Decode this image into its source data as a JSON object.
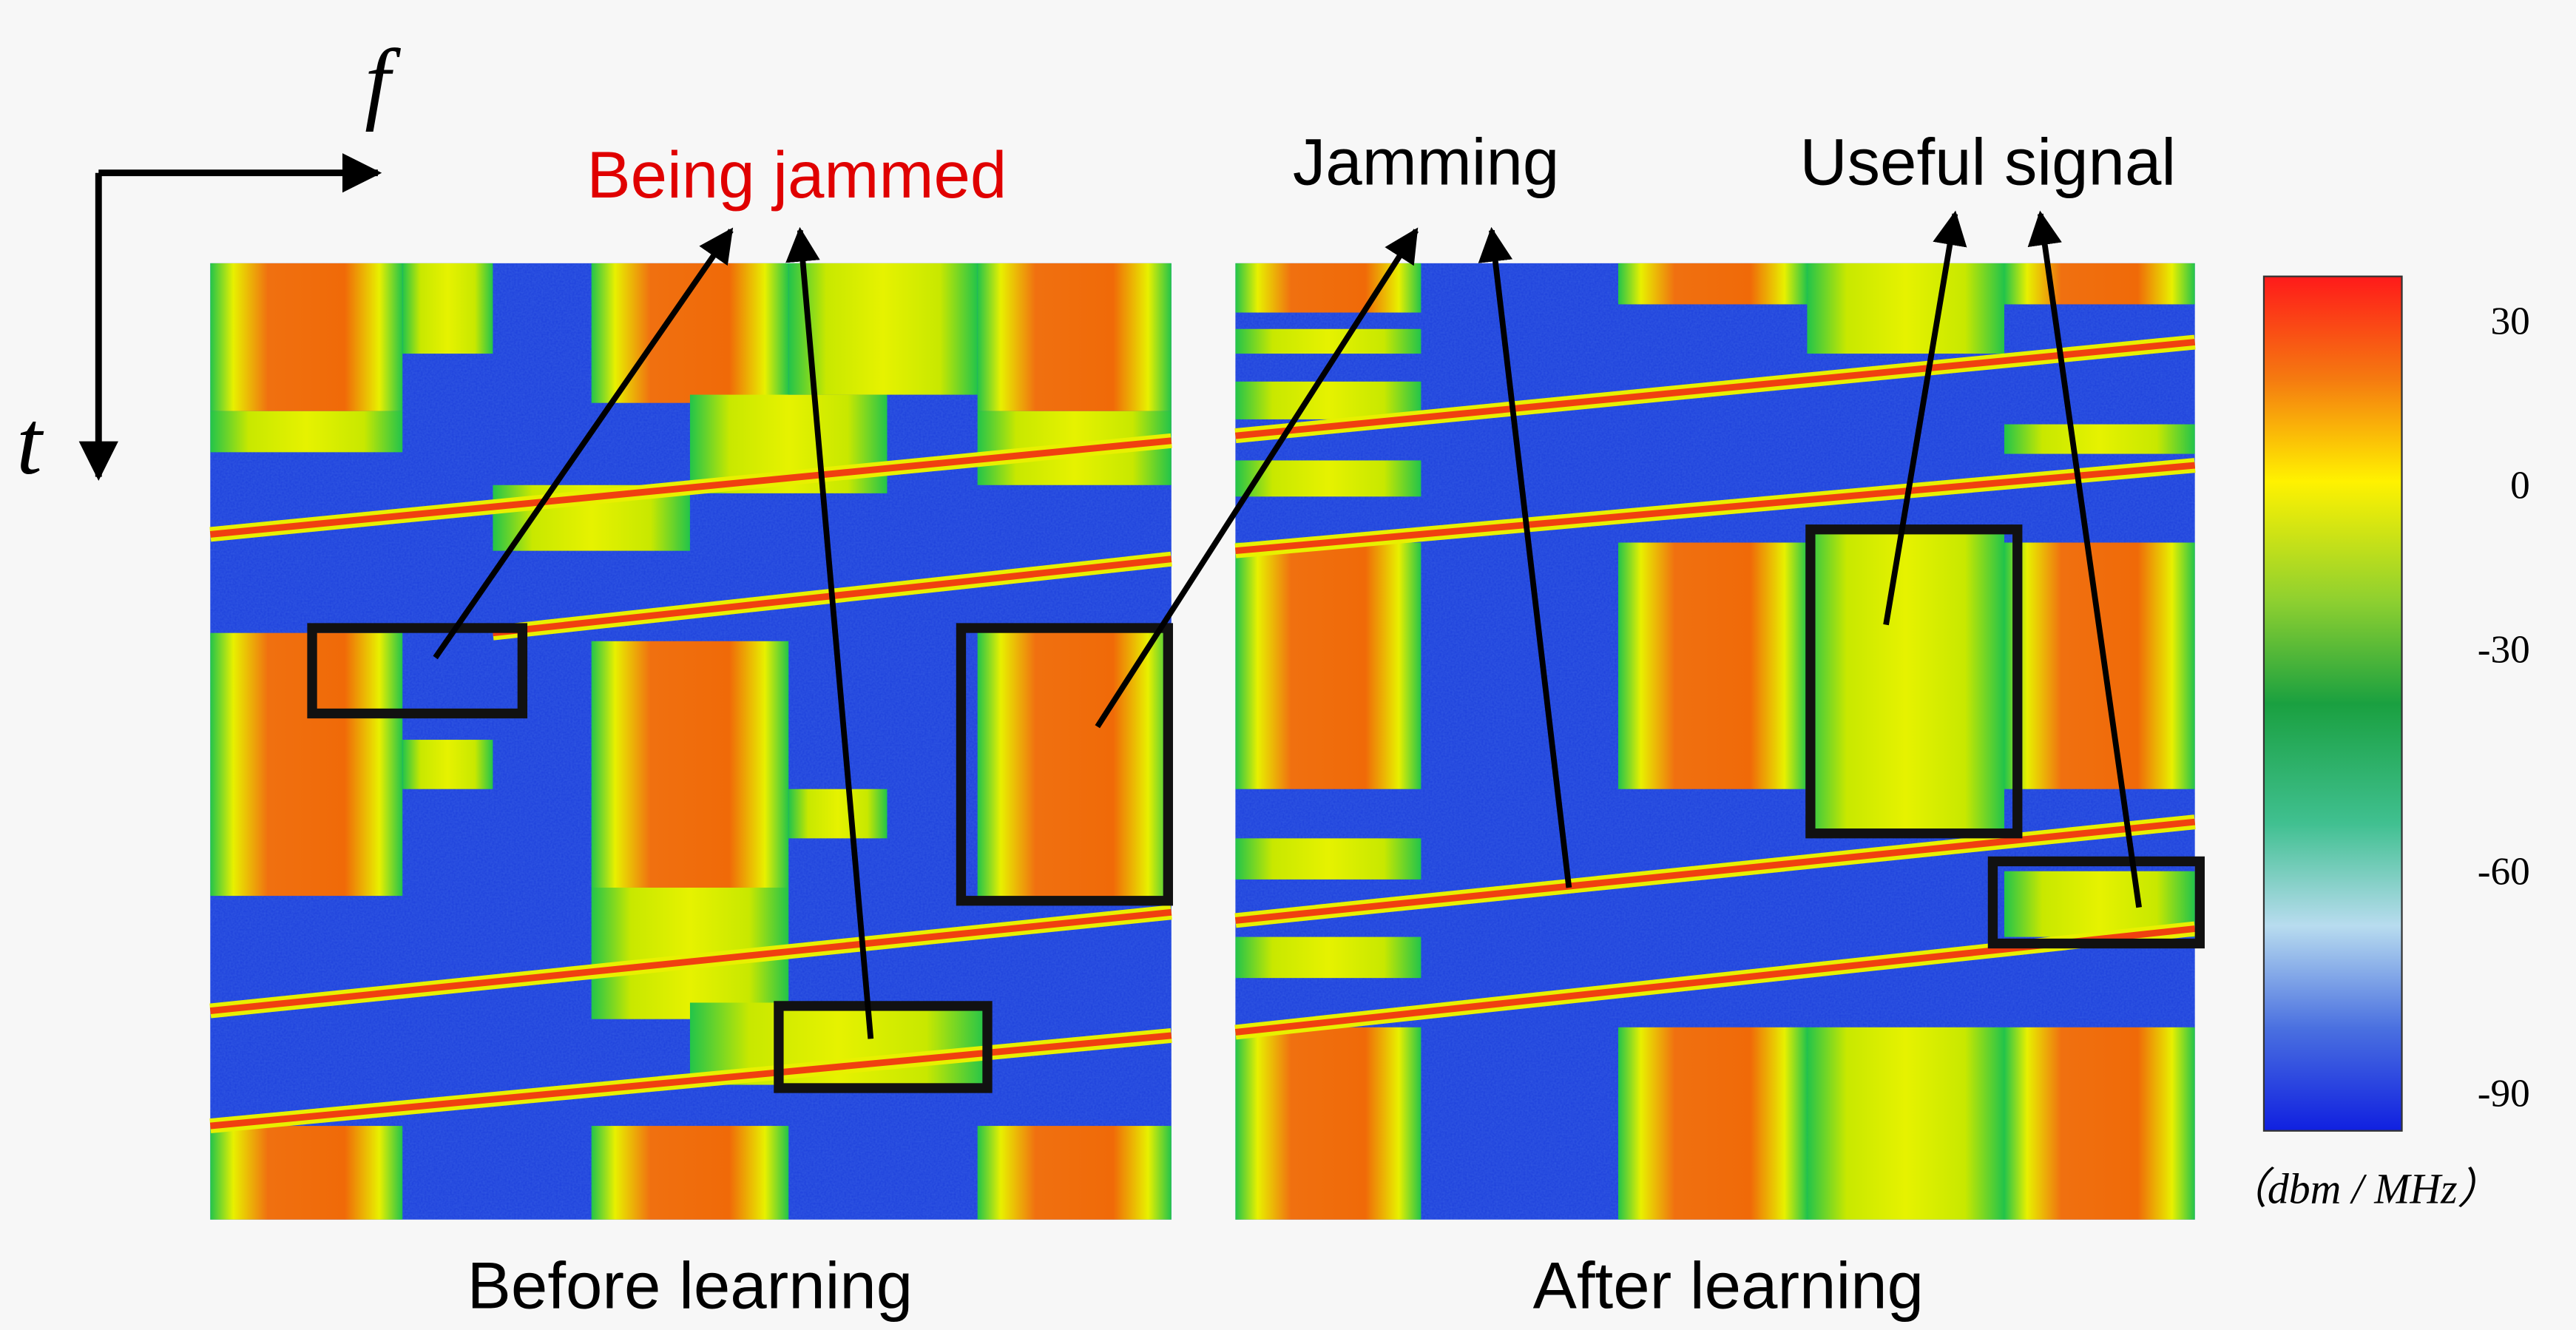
{
  "axes": {
    "frequency": "f",
    "time": "t"
  },
  "labels": {
    "being_jammed": "Being jammed",
    "jamming": "Jamming",
    "useful_signal": "Useful signal"
  },
  "panels": [
    {
      "caption": "Before learning"
    },
    {
      "caption": "After learning"
    }
  ],
  "colorbar": {
    "ticks": [
      30,
      0,
      -30,
      -60,
      -90
    ],
    "unit": "（dbm / MHz）"
  }
}
